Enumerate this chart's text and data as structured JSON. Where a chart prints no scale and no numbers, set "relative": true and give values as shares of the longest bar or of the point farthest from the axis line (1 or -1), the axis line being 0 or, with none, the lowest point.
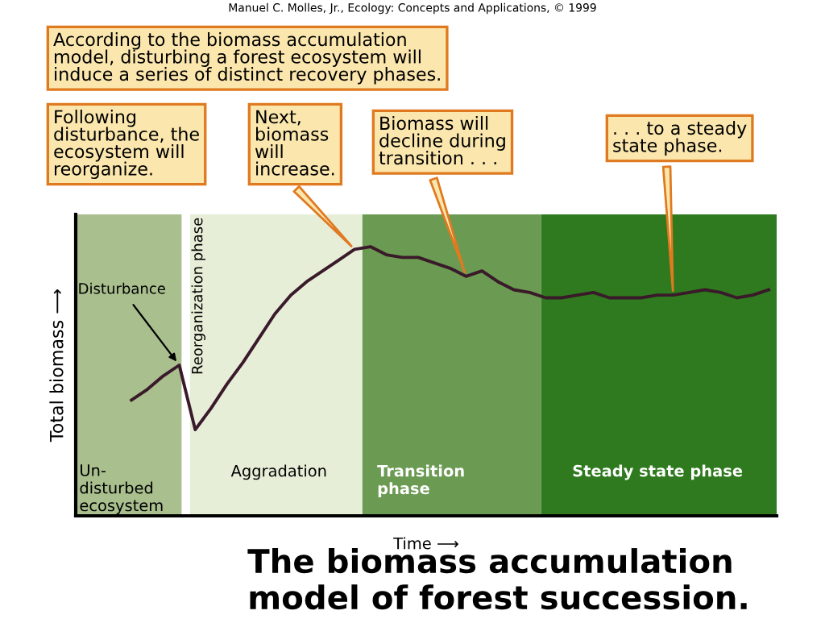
{
  "chart_data": {
    "type": "line",
    "relative": true,
    "title": "The biomass accumulation model of forest succession.",
    "xlabel": "Time ⟶",
    "ylabel": "Total biomass ⟶",
    "categories": [
      null,
      null,
      null,
      null,
      null,
      null,
      null,
      null,
      null,
      null,
      null,
      null,
      null,
      null,
      null,
      null,
      null,
      null,
      null,
      null,
      null,
      null,
      null,
      null,
      null,
      null,
      null,
      null,
      null,
      null,
      null,
      null,
      null,
      null,
      null,
      null,
      null,
      null,
      null,
      null,
      null,
      null,
      null,
      null
    ],
    "series": [
      {
        "color": "#3a1a2a",
        "values": [
          null,
          null,
          null,
          0.43,
          0.47,
          0.52,
          0.56,
          0.32,
          0.4,
          0.49,
          0.57,
          0.66,
          0.75,
          0.82,
          0.87,
          0.91,
          0.95,
          0.99,
          1,
          0.97,
          0.96,
          0.96,
          0.94,
          0.92,
          0.89,
          0.91,
          0.87,
          0.84,
          0.83,
          0.81,
          0.81,
          0.82,
          0.83,
          0.81,
          0.81,
          0.81,
          0.82,
          0.82,
          0.83,
          0.84,
          0.83,
          0.81,
          0.82,
          0.84
        ]
      }
    ],
    "annotations": [
      "Manuel C. Molles, Jr., Ecology: Concepts and Applications, © 1999",
      "According to the biomass accumulation\nmodel, disturbing a forest ecosystem will\ninduce a series of distinct recovery phases.",
      "Following\ndisturbance, the\necosystem will\nreorganize.",
      "Disturbance",
      "Next,\nbiomass\nwill\nincrease.",
      "Biomass will\ndecline during\ntransition . . .",
      ". . . to a steady\nstate phase.",
      "Un-\ndisturbed\necosystem",
      "Reorganization phase",
      "Aggradation",
      "Transition\nphase",
      "Steady state phase"
    ],
    "grid": false,
    "legend": false,
    "marker": "none",
    "line_style": "solid"
  }
}
